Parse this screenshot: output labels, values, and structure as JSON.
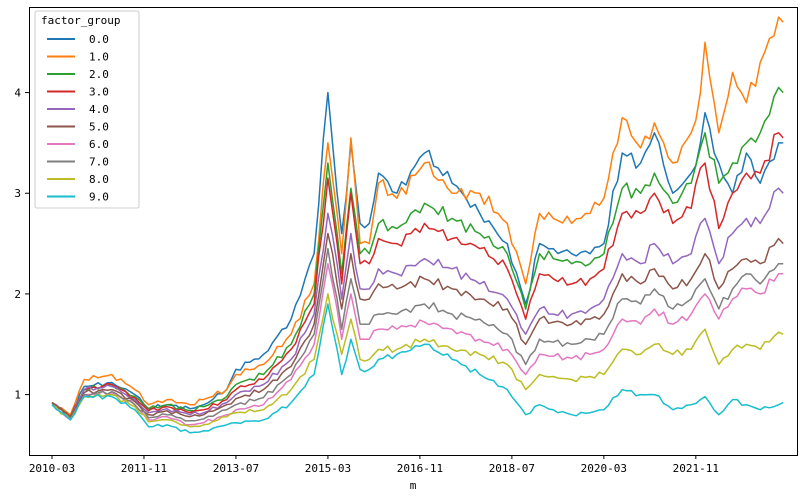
{
  "chart_data": {
    "type": "line",
    "xlabel": "m",
    "ylabel": "",
    "ylim": [
      0.4,
      4.85
    ],
    "xlim": [
      "2009-10",
      "2023-09"
    ],
    "x_ticks": [
      "2010-03",
      "2011-11",
      "2013-07",
      "2015-03",
      "2016-11",
      "2018-07",
      "2020-03",
      "2021-11"
    ],
    "y_ticks": [
      1,
      2,
      3,
      4
    ],
    "legend": {
      "title": "factor_group",
      "position": "top-left"
    },
    "anchor_dates": [
      "2010-03",
      "2010-07",
      "2010-10",
      "2011-04",
      "2011-09",
      "2011-12",
      "2012-04",
      "2012-09",
      "2012-12",
      "2013-05",
      "2013-07",
      "2014-01",
      "2014-07",
      "2014-12",
      "2015-03",
      "2015-05",
      "2015-06",
      "2015-08",
      "2015-10",
      "2015-12",
      "2016-02",
      "2016-06",
      "2016-12",
      "2017-06",
      "2017-12",
      "2018-06",
      "2018-10",
      "2019-01",
      "2019-04",
      "2019-08",
      "2019-12",
      "2020-03",
      "2020-07",
      "2020-11",
      "2021-02",
      "2021-06",
      "2021-10",
      "2021-12",
      "2022-01",
      "2022-04",
      "2022-07",
      "2022-10",
      "2023-01",
      "2023-05",
      "2023-06"
    ],
    "series": [
      {
        "name": "0.0",
        "color": "#1f77b4",
        "values": [
          0.92,
          0.78,
          1.08,
          1.12,
          1.0,
          0.86,
          0.9,
          0.86,
          0.9,
          1.05,
          1.25,
          1.4,
          1.75,
          2.4,
          4.0,
          3.0,
          2.6,
          3.5,
          2.7,
          2.7,
          3.2,
          3.0,
          3.4,
          3.1,
          2.8,
          2.5,
          1.9,
          2.5,
          2.45,
          2.4,
          2.4,
          2.5,
          3.4,
          3.3,
          3.6,
          3.0,
          3.2,
          3.5,
          3.8,
          3.3,
          3.0,
          3.4,
          3.1,
          3.5,
          3.5
        ]
      },
      {
        "name": "1.0",
        "color": "#ff7f0e",
        "values": [
          0.92,
          0.8,
          1.15,
          1.2,
          1.05,
          0.9,
          0.95,
          0.9,
          0.95,
          1.05,
          1.2,
          1.3,
          1.6,
          2.1,
          3.5,
          2.8,
          2.4,
          3.55,
          2.5,
          2.5,
          3.1,
          2.95,
          3.3,
          3.0,
          3.0,
          2.7,
          2.1,
          2.8,
          2.75,
          2.7,
          2.8,
          2.95,
          3.75,
          3.45,
          3.7,
          3.3,
          3.6,
          4.0,
          4.5,
          3.6,
          4.2,
          3.9,
          4.3,
          4.75,
          4.7
        ]
      },
      {
        "name": "2.0",
        "color": "#2ca02c",
        "values": [
          0.92,
          0.78,
          1.05,
          1.1,
          0.98,
          0.86,
          0.9,
          0.84,
          0.88,
          0.98,
          1.1,
          1.2,
          1.5,
          2.0,
          3.3,
          2.6,
          2.2,
          3.05,
          2.4,
          2.4,
          2.7,
          2.65,
          2.9,
          2.75,
          2.6,
          2.4,
          1.85,
          2.4,
          2.35,
          2.3,
          2.3,
          2.4,
          3.05,
          3.0,
          3.2,
          2.9,
          3.1,
          3.45,
          3.6,
          3.1,
          3.3,
          3.5,
          3.6,
          4.05,
          4.0
        ]
      },
      {
        "name": "3.0",
        "color": "#d62728",
        "values": [
          0.92,
          0.78,
          1.05,
          1.1,
          0.97,
          0.84,
          0.88,
          0.82,
          0.85,
          0.95,
          1.05,
          1.15,
          1.45,
          1.9,
          3.15,
          2.5,
          2.1,
          3.0,
          2.3,
          2.3,
          2.55,
          2.5,
          2.7,
          2.55,
          2.45,
          2.25,
          1.75,
          2.2,
          2.15,
          2.1,
          2.15,
          2.25,
          2.8,
          2.8,
          3.0,
          2.7,
          2.85,
          3.25,
          3.3,
          2.65,
          3.0,
          3.2,
          3.2,
          3.6,
          3.55
        ]
      },
      {
        "name": "4.0",
        "color": "#9467bd",
        "values": [
          0.92,
          0.78,
          1.05,
          1.08,
          0.95,
          0.82,
          0.86,
          0.8,
          0.82,
          0.92,
          1.0,
          1.1,
          1.35,
          1.8,
          2.8,
          2.3,
          1.95,
          2.6,
          2.05,
          2.05,
          2.25,
          2.2,
          2.35,
          2.25,
          2.1,
          1.95,
          1.6,
          1.85,
          1.8,
          1.8,
          1.85,
          1.95,
          2.4,
          2.3,
          2.5,
          2.3,
          2.4,
          2.7,
          2.75,
          2.3,
          2.6,
          2.75,
          2.7,
          3.05,
          3.0
        ]
      },
      {
        "name": "5.0",
        "color": "#8c564b",
        "values": [
          0.92,
          0.78,
          1.02,
          1.05,
          0.93,
          0.8,
          0.84,
          0.78,
          0.8,
          0.9,
          0.96,
          1.05,
          1.28,
          1.7,
          2.6,
          2.1,
          1.85,
          2.4,
          1.95,
          1.95,
          2.1,
          2.05,
          2.15,
          2.05,
          1.95,
          1.85,
          1.5,
          1.75,
          1.72,
          1.7,
          1.75,
          1.8,
          2.2,
          2.1,
          2.25,
          2.05,
          2.15,
          2.3,
          2.4,
          2.05,
          2.25,
          2.35,
          2.3,
          2.55,
          2.5
        ]
      },
      {
        "name": "6.0",
        "color": "#e377c2",
        "values": [
          0.9,
          0.75,
          1.0,
          1.02,
          0.9,
          0.75,
          0.78,
          0.7,
          0.72,
          0.8,
          0.85,
          0.9,
          1.15,
          1.5,
          2.3,
          1.85,
          1.55,
          2.0,
          1.55,
          1.55,
          1.65,
          1.65,
          1.72,
          1.65,
          1.55,
          1.45,
          1.2,
          1.4,
          1.38,
          1.36,
          1.4,
          1.45,
          1.75,
          1.7,
          1.85,
          1.7,
          1.8,
          1.95,
          2.0,
          1.75,
          1.95,
          2.05,
          2.0,
          2.2,
          2.2
        ]
      },
      {
        "name": "7.0",
        "color": "#7f7f7f",
        "values": [
          0.9,
          0.76,
          1.0,
          1.03,
          0.9,
          0.77,
          0.8,
          0.74,
          0.76,
          0.85,
          0.9,
          0.97,
          1.2,
          1.6,
          2.45,
          1.95,
          1.65,
          2.15,
          1.7,
          1.7,
          1.8,
          1.8,
          1.9,
          1.8,
          1.75,
          1.6,
          1.3,
          1.55,
          1.52,
          1.5,
          1.55,
          1.6,
          1.95,
          1.9,
          2.05,
          1.85,
          1.95,
          2.1,
          2.15,
          1.85,
          2.05,
          2.2,
          2.1,
          2.3,
          2.3
        ]
      },
      {
        "name": "8.0",
        "color": "#bcbd22",
        "values": [
          0.9,
          0.75,
          0.98,
          1.0,
          0.88,
          0.73,
          0.75,
          0.68,
          0.7,
          0.78,
          0.82,
          0.85,
          1.05,
          1.35,
          2.0,
          1.6,
          1.4,
          1.75,
          1.35,
          1.35,
          1.45,
          1.45,
          1.55,
          1.45,
          1.4,
          1.3,
          1.05,
          1.2,
          1.18,
          1.15,
          1.18,
          1.2,
          1.45,
          1.4,
          1.5,
          1.4,
          1.45,
          1.6,
          1.65,
          1.3,
          1.45,
          1.5,
          1.45,
          1.62,
          1.6
        ]
      },
      {
        "name": "9.0",
        "color": "#17becf",
        "values": [
          0.9,
          0.75,
          0.98,
          0.98,
          0.85,
          0.68,
          0.7,
          0.62,
          0.64,
          0.7,
          0.72,
          0.75,
          0.92,
          1.2,
          1.9,
          1.45,
          1.2,
          1.55,
          1.25,
          1.25,
          1.35,
          1.4,
          1.5,
          1.35,
          1.2,
          1.05,
          0.8,
          0.9,
          0.85,
          0.8,
          0.82,
          0.85,
          1.05,
          1.0,
          1.0,
          0.85,
          0.9,
          0.95,
          0.98,
          0.8,
          0.95,
          0.9,
          0.85,
          0.9,
          0.92
        ]
      }
    ]
  }
}
